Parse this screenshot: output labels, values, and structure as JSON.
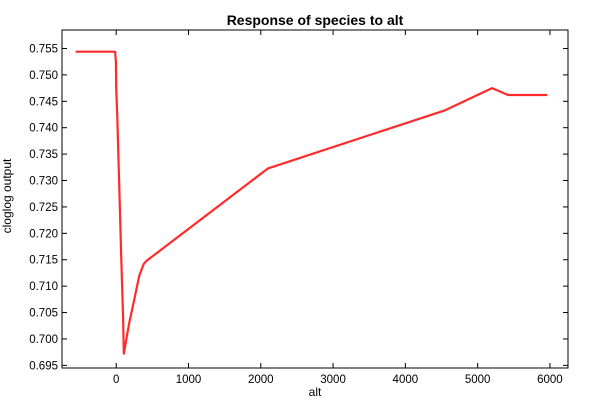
{
  "chart_data": {
    "type": "line",
    "title": "Response of species to alt",
    "xlabel": "alt",
    "ylabel": "cloglog output",
    "xlim": [
      -750,
      6250
    ],
    "ylim": [
      0.6945,
      0.7585
    ],
    "xticks": [
      0,
      1000,
      2000,
      3000,
      4000,
      5000,
      6000
    ],
    "xtick_labels": [
      "0",
      "1000",
      "2000",
      "3000",
      "4000",
      "5000",
      "6000"
    ],
    "yticks": [
      0.695,
      0.7,
      0.705,
      0.71,
      0.715,
      0.72,
      0.725,
      0.73,
      0.735,
      0.74,
      0.745,
      0.75,
      0.755
    ],
    "ytick_labels": [
      "0.695",
      "0.700",
      "0.705",
      "0.710",
      "0.715",
      "0.720",
      "0.725",
      "0.730",
      "0.735",
      "0.740",
      "0.745",
      "0.750",
      "0.755"
    ],
    "grid": false,
    "series": [
      {
        "color": "#ff2a2a",
        "x": [
          -550,
          -30,
          -15,
          -5,
          0,
          15,
          40,
          70,
          95,
          105,
          180,
          250,
          320,
          380,
          420,
          2100,
          4550,
          5200,
          5420,
          5950
        ],
        "y": [
          0.7544,
          0.7544,
          0.7544,
          0.7525,
          0.7475,
          0.742,
          0.73,
          0.715,
          0.704,
          0.6972,
          0.703,
          0.7075,
          0.712,
          0.7142,
          0.7148,
          0.7323,
          0.7433,
          0.7475,
          0.7462,
          0.7462
        ]
      }
    ]
  }
}
